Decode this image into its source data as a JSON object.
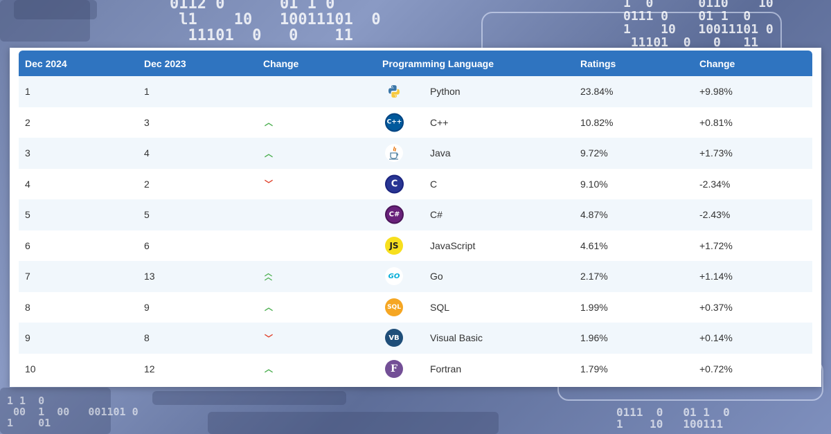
{
  "table": {
    "headers": [
      "Dec 2024",
      "Dec 2023",
      "Change",
      "Programming Language",
      "Ratings",
      "Change"
    ],
    "rows": [
      {
        "rank_2024": "1",
        "rank_2023": "1",
        "trend": "none",
        "language": "Python",
        "logo": "python-logo-icon",
        "ratings": "23.84%",
        "change": "+9.98%"
      },
      {
        "rank_2024": "2",
        "rank_2023": "3",
        "trend": "up",
        "language": "C++",
        "logo": "cpp-logo-icon",
        "ratings": "10.82%",
        "change": "+0.81%"
      },
      {
        "rank_2024": "3",
        "rank_2023": "4",
        "trend": "up",
        "language": "Java",
        "logo": "java-logo-icon",
        "ratings": "9.72%",
        "change": "+1.73%"
      },
      {
        "rank_2024": "4",
        "rank_2023": "2",
        "trend": "down",
        "language": "C",
        "logo": "c-logo-icon",
        "ratings": "9.10%",
        "change": "-2.34%"
      },
      {
        "rank_2024": "5",
        "rank_2023": "5",
        "trend": "none",
        "language": "C#",
        "logo": "csharp-logo-icon",
        "ratings": "4.87%",
        "change": "-2.43%"
      },
      {
        "rank_2024": "6",
        "rank_2023": "6",
        "trend": "none",
        "language": "JavaScript",
        "logo": "javascript-logo-icon",
        "ratings": "4.61%",
        "change": "+1.72%"
      },
      {
        "rank_2024": "7",
        "rank_2023": "13",
        "trend": "double-up",
        "language": "Go",
        "logo": "go-logo-icon",
        "ratings": "2.17%",
        "change": "+1.14%"
      },
      {
        "rank_2024": "8",
        "rank_2023": "9",
        "trend": "up",
        "language": "SQL",
        "logo": "sql-logo-icon",
        "ratings": "1.99%",
        "change": "+0.37%"
      },
      {
        "rank_2024": "9",
        "rank_2023": "8",
        "trend": "down",
        "language": "Visual Basic",
        "logo": "visual-basic-logo-icon",
        "ratings": "1.96%",
        "change": "+0.14%"
      },
      {
        "rank_2024": "10",
        "rank_2023": "12",
        "trend": "up",
        "language": "Fortran",
        "logo": "fortran-logo-icon",
        "ratings": "1.79%",
        "change": "+0.72%"
      }
    ]
  },
  "logo_text": {
    "cpp": "C++",
    "c": "C",
    "csharp": "C#",
    "javascript": "JS",
    "go": "GO",
    "sql": "SQL",
    "visual_basic": "VB",
    "fortran": "F"
  },
  "background_digits": {
    "top_left": "0112 0      01 1 0\n l1    10   10011101  0\n  11101  0   0    11",
    "top_right": "1  0      0110    10\n0111 0    01 1  0\n1    10   10011101 0\n 11101  0   0   11",
    "bottom_left": "1 1  0\n 00  1  00   001101 0\n1    01",
    "bottom_right": "0111  0   01 1  0\n1    10   100111"
  },
  "colors": {
    "header_bg": "#2f74c0",
    "row_alt_bg": "#f1f7fc",
    "trend_up": "#4caf50",
    "trend_down": "#e0402a"
  }
}
